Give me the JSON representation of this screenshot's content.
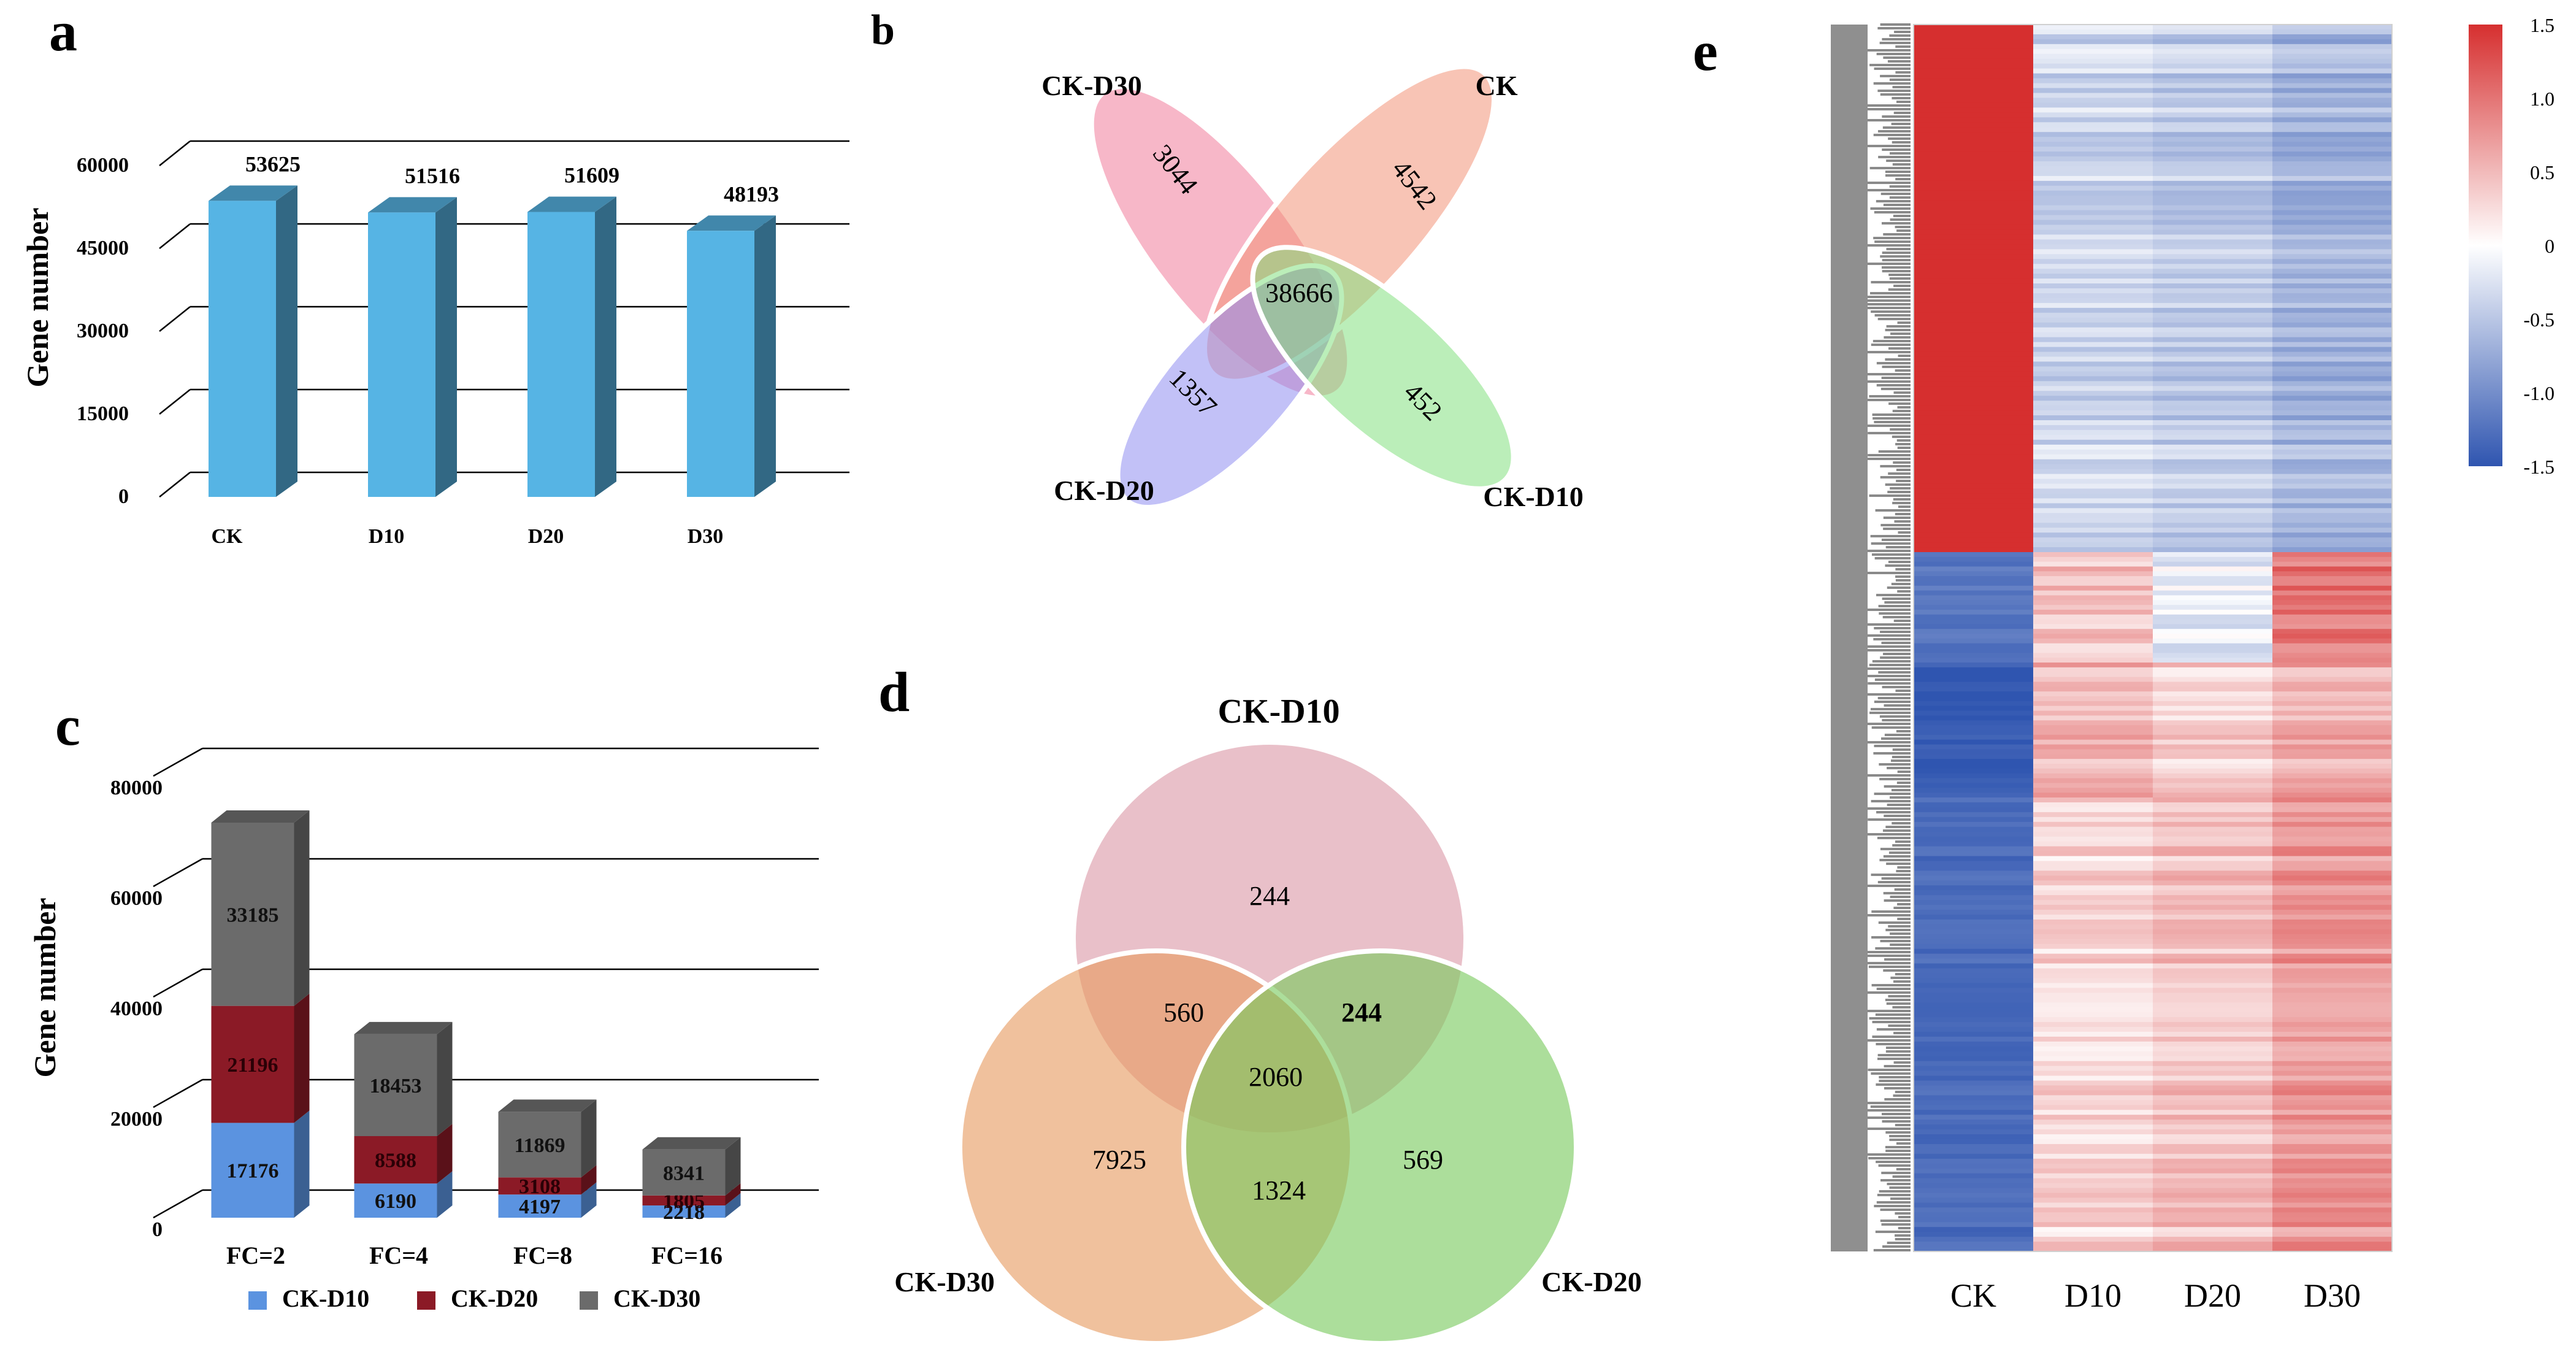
{
  "panels": {
    "a": "a",
    "b": "b",
    "c": "c",
    "d": "d",
    "e": "e"
  },
  "chart_data": [
    {
      "panel": "a",
      "type": "bar",
      "categories": [
        "CK",
        "D10",
        "D20",
        "D30"
      ],
      "values": [
        53625,
        51516,
        51609,
        48193
      ],
      "ylabel": "Gene number",
      "yticks": [
        0,
        15000,
        30000,
        45000,
        60000
      ],
      "ytick_labels": [
        "0",
        "15000",
        "30000",
        "45000",
        "60000"
      ],
      "ylim": [
        0,
        60000
      ],
      "data_labels": [
        "53625",
        "51516",
        "51609",
        "48193"
      ],
      "color": "#56b4e4"
    },
    {
      "panel": "b",
      "type": "venn",
      "sets": [
        {
          "name": "CK-D30",
          "unique": "3044",
          "color": "#f07b9a"
        },
        {
          "name": "CK",
          "unique": "4542",
          "color": "#f29478"
        },
        {
          "name": "CK-D20",
          "unique": "1357",
          "color": "#8f8ef0"
        },
        {
          "name": "CK-D10",
          "unique": "452",
          "color": "#84e080"
        }
      ],
      "intersection": "38666"
    },
    {
      "panel": "c",
      "type": "bar",
      "stacked": true,
      "categories": [
        "FC=2",
        "FC=4",
        "FC=8",
        "FC=16"
      ],
      "ylabel": "Gene number",
      "yticks": [
        0,
        20000,
        40000,
        60000,
        80000
      ],
      "ytick_labels": [
        "0",
        "20000",
        "40000",
        "60000",
        "80000"
      ],
      "ylim": [
        0,
        80000
      ],
      "series": [
        {
          "name": "CK-D10",
          "values": [
            17176,
            6190,
            4197,
            2218
          ],
          "labels": [
            "17176",
            "6190",
            "4197",
            "2218"
          ],
          "color": "#5b93e0"
        },
        {
          "name": "CK-D20",
          "values": [
            21196,
            8588,
            3108,
            1805
          ],
          "labels": [
            "21196",
            "8588",
            "3108",
            "1805"
          ],
          "color": "#8b1a26"
        },
        {
          "name": "CK-D30",
          "values": [
            33185,
            18453,
            11869,
            8341
          ],
          "labels": [
            "33185",
            "18453",
            "11869",
            "8341"
          ],
          "color": "#6b6b6b"
        }
      ]
    },
    {
      "panel": "d",
      "type": "venn",
      "sets": [
        {
          "name": "CK-D10",
          "color": "#dc9aa8"
        },
        {
          "name": "CK-D30",
          "color": "#e79b61"
        },
        {
          "name": "CK-D20",
          "color": "#79ca5e"
        }
      ],
      "regions": {
        "CK-D10_only": "244",
        "CK-D30_only": "7925",
        "CK-D20_only": "569",
        "CK-D10&CK-D30": "560",
        "CK-D10&CK-D20": "244",
        "CK-D30&CK-D20": "1324",
        "all": "2060"
      }
    },
    {
      "panel": "e",
      "type": "heatmap",
      "columns": [
        "CK",
        "D10",
        "D20",
        "D30"
      ],
      "colorbar_ticks": [
        "1.5",
        "1.0",
        "0.5",
        "0",
        "-0.5",
        "-1.0",
        "-1.5"
      ],
      "colorbar_range": [
        -1.5,
        1.5
      ],
      "colors": {
        "high": "#d62f2f",
        "mid": "#ffffff",
        "low": "#2f55b0"
      },
      "clusters": [
        {
          "share": 0.43,
          "values": [
            1.5,
            -0.35,
            -0.45,
            -0.65
          ]
        },
        {
          "share": 0.09,
          "values": [
            -1.2,
            0.45,
            -0.15,
            1.0
          ]
        },
        {
          "share": 0.11,
          "values": [
            -1.45,
            0.55,
            0.35,
            0.6
          ]
        },
        {
          "share": 0.37,
          "values": [
            -1.3,
            0.3,
            0.45,
            0.75
          ]
        }
      ]
    }
  ]
}
